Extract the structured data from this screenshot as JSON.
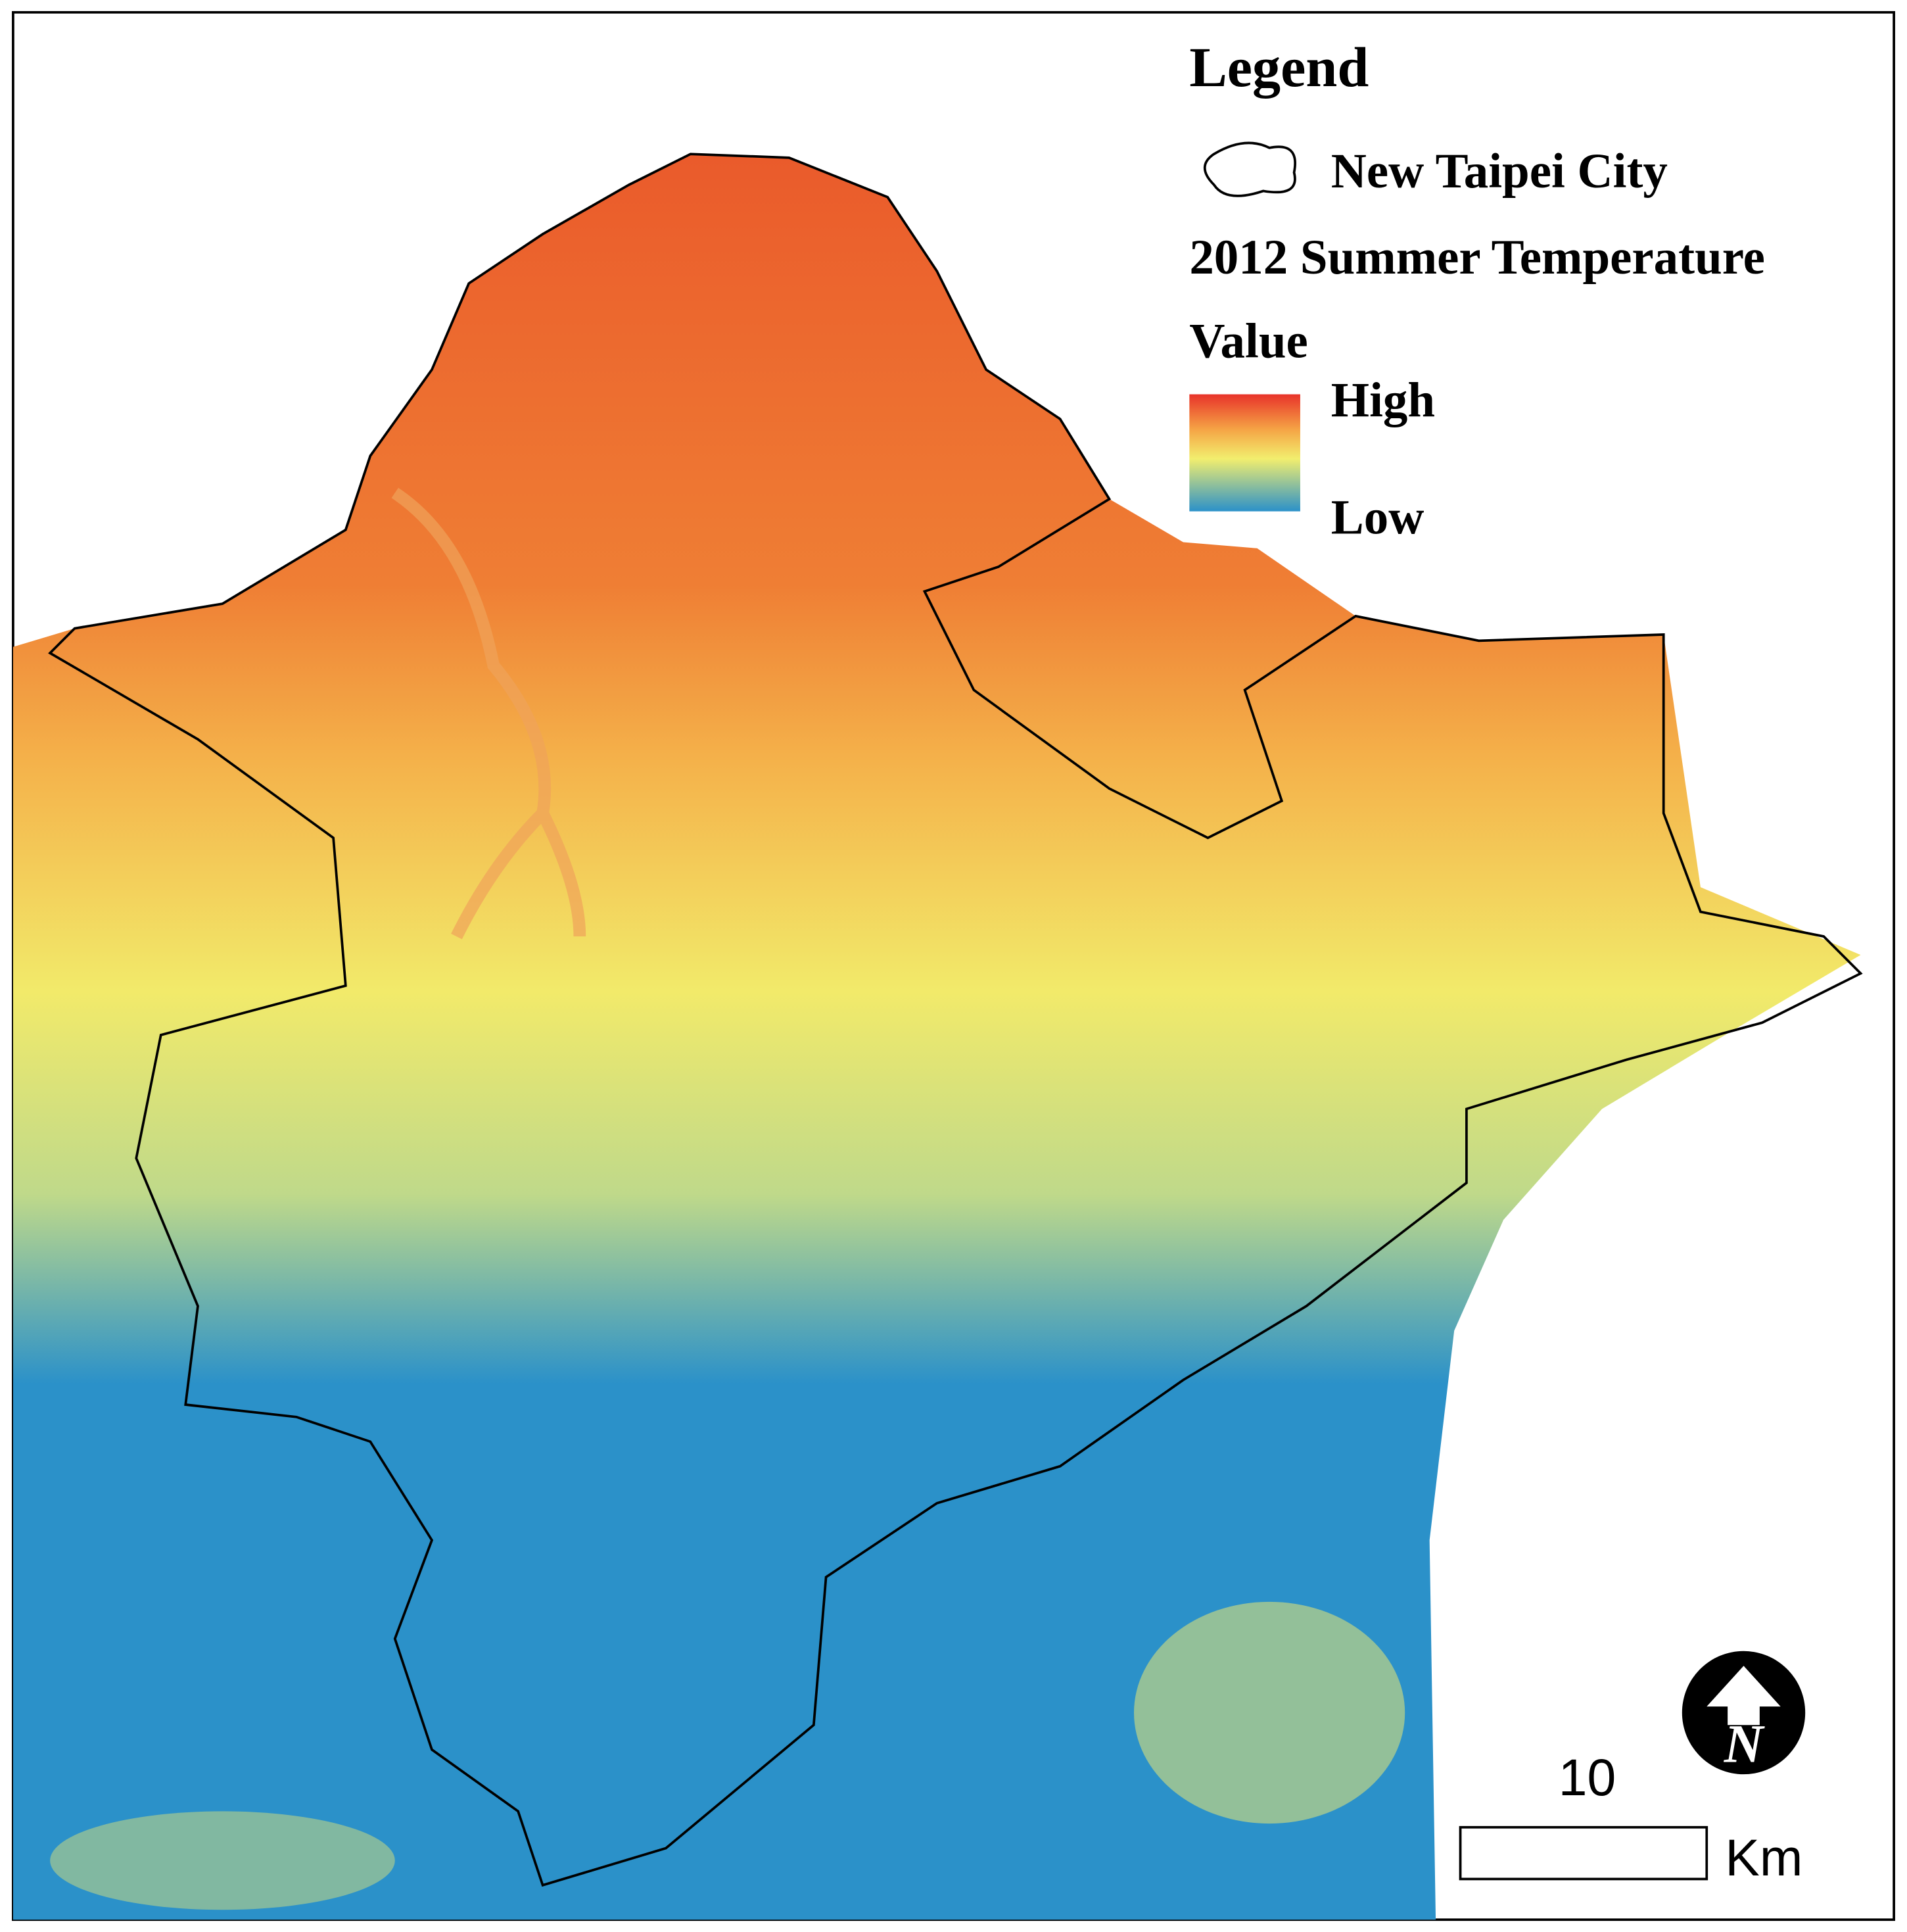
{
  "legend": {
    "title": "Legend",
    "boundary_label": "New Taipei City",
    "layer_title": "2012 Summer Temperature",
    "field": "Value",
    "high": "High",
    "low": "Low"
  },
  "scale_bar": {
    "distance": "10",
    "unit": "Km"
  }
}
